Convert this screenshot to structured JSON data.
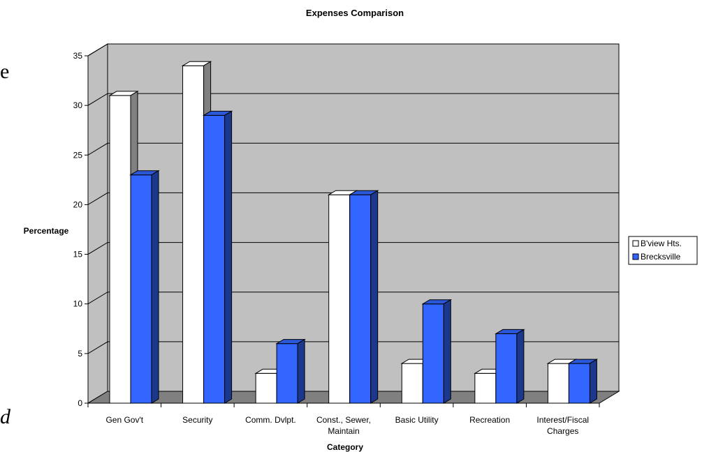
{
  "chart_data": {
    "type": "bar",
    "title": "Expenses Comparison",
    "xlabel": "Category",
    "ylabel": "Percentage",
    "ylim": [
      0,
      35
    ],
    "yticks": [
      0,
      5,
      10,
      15,
      20,
      25,
      30,
      35
    ],
    "grid": true,
    "legend_position": "right",
    "categories": [
      "Gen Gov't",
      "Security",
      "Comm. Dvlpt.",
      "Const., Sewer, Maintain",
      "Basic Utility",
      "Recreation",
      "Interest/Fiscal Charges"
    ],
    "series": [
      {
        "name": "B'view Hts.",
        "color": "#ffffff",
        "values": [
          31,
          34,
          3,
          21,
          4,
          3,
          4
        ]
      },
      {
        "name": "Brecksville",
        "color": "#3366ff",
        "values": [
          23,
          29,
          6,
          21,
          10,
          7,
          4
        ]
      }
    ],
    "colors": {
      "wall": "#c0c0c0",
      "floor": "#808080",
      "grid": "#000000"
    }
  },
  "fragments": {
    "top": "e",
    "bottom": "d"
  }
}
